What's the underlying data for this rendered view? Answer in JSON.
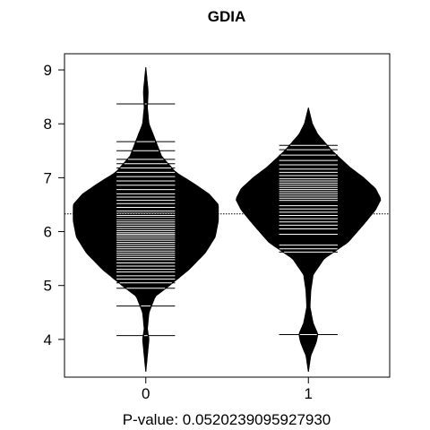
{
  "chart_data": {
    "type": "beanplot",
    "title": "GDIA",
    "xlabel": "P-value: 0.0520239095927930",
    "ylabel": "",
    "ylim": [
      3.3,
      9.3
    ],
    "yticks": [
      4,
      5,
      6,
      7,
      8,
      9
    ],
    "categories": [
      "0",
      "1"
    ],
    "overall_mean": 6.33,
    "grid": false,
    "groups": [
      {
        "name": "0",
        "mean": 6.24,
        "density": [
          [
            3.4,
            0.0
          ],
          [
            3.7,
            0.02
          ],
          [
            4.0,
            0.04
          ],
          [
            4.2,
            0.02
          ],
          [
            4.5,
            0.04
          ],
          [
            4.8,
            0.12
          ],
          [
            5.0,
            0.3
          ],
          [
            5.3,
            0.55
          ],
          [
            5.6,
            0.75
          ],
          [
            5.9,
            0.88
          ],
          [
            6.2,
            0.92
          ],
          [
            6.5,
            0.92
          ],
          [
            6.7,
            0.8
          ],
          [
            6.9,
            0.6
          ],
          [
            7.1,
            0.38
          ],
          [
            7.4,
            0.2
          ],
          [
            7.7,
            0.12
          ],
          [
            8.0,
            0.04
          ],
          [
            8.3,
            0.02
          ],
          [
            8.6,
            0.03
          ],
          [
            8.9,
            0.01
          ],
          [
            9.05,
            0.0
          ]
        ],
        "observations": [
          4.07,
          4.62,
          4.95,
          5.05,
          5.12,
          5.18,
          5.25,
          5.3,
          5.36,
          5.42,
          5.48,
          5.52,
          5.56,
          5.6,
          5.64,
          5.68,
          5.72,
          5.76,
          5.8,
          5.84,
          5.88,
          5.92,
          5.95,
          5.98,
          6.02,
          6.06,
          6.1,
          6.14,
          6.18,
          6.22,
          6.26,
          6.3,
          6.34,
          6.38,
          6.45,
          6.52,
          6.58,
          6.64,
          6.7,
          6.78,
          6.86,
          6.94,
          7.02,
          7.1,
          7.18,
          7.26,
          7.34,
          7.5,
          7.67,
          8.37
        ]
      },
      {
        "name": "1",
        "mean": 6.53,
        "density": [
          [
            3.4,
            0.0
          ],
          [
            3.7,
            0.03
          ],
          [
            3.95,
            0.1
          ],
          [
            4.1,
            0.12
          ],
          [
            4.3,
            0.06
          ],
          [
            4.6,
            0.02
          ],
          [
            4.9,
            0.03
          ],
          [
            5.2,
            0.06
          ],
          [
            5.5,
            0.2
          ],
          [
            5.8,
            0.5
          ],
          [
            6.1,
            0.68
          ],
          [
            6.4,
            0.85
          ],
          [
            6.6,
            0.92
          ],
          [
            6.8,
            0.85
          ],
          [
            7.0,
            0.7
          ],
          [
            7.2,
            0.52
          ],
          [
            7.5,
            0.3
          ],
          [
            7.8,
            0.12
          ],
          [
            8.0,
            0.05
          ],
          [
            8.3,
            0.0
          ]
        ],
        "observations": [
          4.09,
          5.62,
          5.68,
          5.75,
          5.95,
          6.05,
          6.12,
          6.18,
          6.24,
          6.3,
          6.36,
          6.42,
          6.48,
          6.54,
          6.58,
          6.62,
          6.66,
          6.7,
          6.74,
          6.78,
          6.82,
          6.86,
          6.9,
          6.94,
          6.98,
          7.04,
          7.1,
          7.16,
          7.24,
          7.32,
          7.42,
          7.52,
          7.6
        ]
      }
    ]
  }
}
